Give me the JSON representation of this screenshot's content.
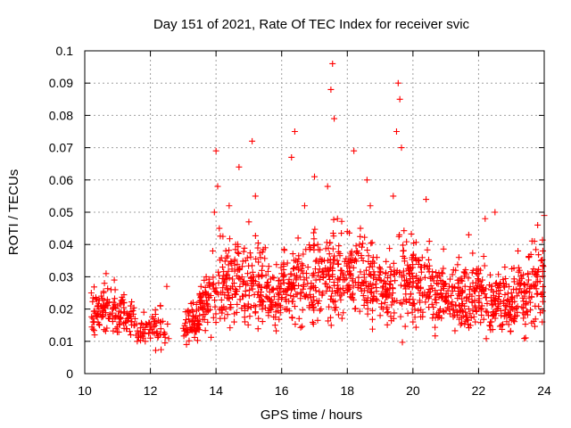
{
  "chart_data": {
    "type": "scatter",
    "title": "Day 151 of 2021, Rate Of TEC Index for receiver svic",
    "xlabel": "GPS time / hours",
    "ylabel": "ROTI / TECUs",
    "xlim": [
      10,
      24
    ],
    "ylim": [
      0,
      0.1
    ],
    "x_ticks": [
      "10",
      "12",
      "14",
      "16",
      "18",
      "20",
      "22",
      "24"
    ],
    "y_ticks": [
      "0",
      "0.01",
      "0.02",
      "0.03",
      "0.04",
      "0.05",
      "0.06",
      "0.07",
      "0.08",
      "0.09",
      "0.1"
    ],
    "grid": true,
    "marker": "+",
    "series_color": "#ff0000",
    "series": [
      {
        "name": "ROTI",
        "x": [
          10.2,
          10.25,
          10.3,
          10.35,
          10.4,
          10.45,
          10.5,
          10.55,
          10.6,
          10.65,
          10.7,
          10.75,
          10.8,
          10.85,
          10.9,
          10.95,
          11.0,
          11.05,
          11.1,
          11.2,
          11.3,
          11.4,
          11.5,
          11.6,
          11.7,
          11.8,
          11.9,
          12.0,
          12.1,
          12.2,
          12.3,
          12.4,
          12.5,
          13.0,
          13.1,
          13.2,
          13.3,
          13.4,
          13.5,
          13.6,
          13.7,
          13.8,
          13.9,
          13.95,
          14.0,
          14.05,
          14.1,
          14.2,
          14.3,
          14.4,
          14.5,
          14.6,
          14.7,
          14.8,
          14.9,
          15.0,
          15.1,
          15.2,
          15.3,
          15.4,
          15.5,
          15.6,
          15.7,
          15.8,
          15.9,
          16.0,
          16.1,
          16.2,
          16.3,
          16.4,
          16.5,
          16.6,
          16.7,
          16.8,
          16.9,
          17.0,
          17.1,
          17.2,
          17.3,
          17.4,
          17.5,
          17.55,
          17.6,
          17.7,
          17.8,
          17.9,
          18.0,
          18.1,
          18.2,
          18.3,
          18.4,
          18.5,
          18.6,
          18.7,
          18.8,
          18.9,
          19.0,
          19.1,
          19.2,
          19.3,
          19.4,
          19.5,
          19.55,
          19.6,
          19.65,
          19.7,
          19.8,
          19.9,
          20.0,
          20.1,
          20.2,
          20.3,
          20.4,
          20.5,
          20.6,
          20.7,
          20.8,
          20.9,
          21.0,
          21.1,
          21.2,
          21.3,
          21.4,
          21.5,
          21.6,
          21.7,
          21.8,
          21.9,
          22.0,
          22.1,
          22.2,
          22.3,
          22.4,
          22.5,
          22.6,
          22.7,
          22.8,
          22.9,
          23.0,
          23.1,
          23.2,
          23.3,
          23.4,
          23.5,
          23.6,
          23.7,
          23.8,
          23.9,
          24.0
        ],
        "y": [
          0.025,
          0.016,
          0.012,
          0.018,
          0.021,
          0.015,
          0.024,
          0.019,
          0.028,
          0.031,
          0.022,
          0.017,
          0.026,
          0.02,
          0.029,
          0.018,
          0.021,
          0.016,
          0.019,
          0.014,
          0.017,
          0.012,
          0.015,
          0.01,
          0.013,
          0.019,
          0.015,
          0.011,
          0.017,
          0.013,
          0.016,
          0.012,
          0.027,
          0.014,
          0.009,
          0.016,
          0.022,
          0.013,
          0.018,
          0.025,
          0.03,
          0.028,
          0.038,
          0.05,
          0.069,
          0.058,
          0.045,
          0.033,
          0.02,
          0.052,
          0.027,
          0.04,
          0.064,
          0.024,
          0.035,
          0.047,
          0.072,
          0.055,
          0.03,
          0.021,
          0.039,
          0.018,
          0.026,
          0.015,
          0.023,
          0.031,
          0.02,
          0.028,
          0.067,
          0.075,
          0.042,
          0.025,
          0.052,
          0.033,
          0.028,
          0.061,
          0.04,
          0.02,
          0.035,
          0.058,
          0.088,
          0.096,
          0.079,
          0.048,
          0.032,
          0.025,
          0.044,
          0.031,
          0.069,
          0.038,
          0.045,
          0.028,
          0.06,
          0.052,
          0.024,
          0.036,
          0.018,
          0.027,
          0.02,
          0.033,
          0.055,
          0.075,
          0.09,
          0.085,
          0.07,
          0.038,
          0.029,
          0.022,
          0.016,
          0.035,
          0.025,
          0.019,
          0.054,
          0.041,
          0.03,
          0.023,
          0.018,
          0.031,
          0.024,
          0.02,
          0.027,
          0.032,
          0.036,
          0.025,
          0.019,
          0.043,
          0.022,
          0.016,
          0.029,
          0.021,
          0.048,
          0.018,
          0.027,
          0.05,
          0.023,
          0.015,
          0.033,
          0.019,
          0.025,
          0.02,
          0.038,
          0.028,
          0.024,
          0.031,
          0.027,
          0.041,
          0.046,
          0.035,
          0.049
        ]
      }
    ],
    "density": {
      "note": "Dense cloud of ROTI samples per half-hour interval: [start_hour, end_hour, low_value, high_value]",
      "bands": [
        [
          10.2,
          10.8,
          0.01,
          0.03
        ],
        [
          10.8,
          11.5,
          0.009,
          0.028
        ],
        [
          11.5,
          12.6,
          0.006,
          0.022
        ],
        [
          13.0,
          13.5,
          0.006,
          0.025
        ],
        [
          13.5,
          14.0,
          0.01,
          0.035
        ],
        [
          14.0,
          14.5,
          0.009,
          0.05
        ],
        [
          14.5,
          15.0,
          0.01,
          0.045
        ],
        [
          15.0,
          15.5,
          0.009,
          0.048
        ],
        [
          15.5,
          16.0,
          0.01,
          0.04
        ],
        [
          16.0,
          16.5,
          0.011,
          0.045
        ],
        [
          16.5,
          17.0,
          0.01,
          0.048
        ],
        [
          17.0,
          17.5,
          0.012,
          0.05
        ],
        [
          17.5,
          18.0,
          0.012,
          0.052
        ],
        [
          18.0,
          18.5,
          0.014,
          0.05
        ],
        [
          18.5,
          19.0,
          0.01,
          0.045
        ],
        [
          19.0,
          19.5,
          0.009,
          0.042
        ],
        [
          19.5,
          20.0,
          0.008,
          0.05
        ],
        [
          20.0,
          20.5,
          0.009,
          0.045
        ],
        [
          20.5,
          21.0,
          0.009,
          0.04
        ],
        [
          21.0,
          21.5,
          0.01,
          0.038
        ],
        [
          21.5,
          22.0,
          0.01,
          0.04
        ],
        [
          22.0,
          22.5,
          0.007,
          0.038
        ],
        [
          22.5,
          23.0,
          0.008,
          0.035
        ],
        [
          23.0,
          23.5,
          0.008,
          0.04
        ],
        [
          23.5,
          24.0,
          0.01,
          0.045
        ]
      ],
      "points_per_band": 60
    }
  }
}
